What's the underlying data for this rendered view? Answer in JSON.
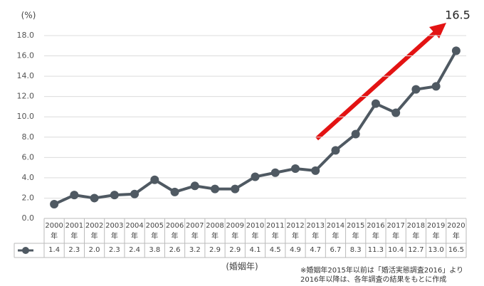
{
  "chart_data": {
    "type": "line",
    "y_unit": "(%)",
    "x_label": "(婚姻年)",
    "annotation": "16.5",
    "notes": [
      "※婚姻年2015年以前は「婚活実態調査2016」より",
      "2016年以降は、各年調査の結果をもとに作成"
    ],
    "categories": [
      "2000年",
      "2001年",
      "2002年",
      "2003年",
      "2004年",
      "2005年",
      "2006年",
      "2007年",
      "2008年",
      "2009年",
      "2010年",
      "2011年",
      "2012年",
      "2013年",
      "2014年",
      "2015年",
      "2016年",
      "2017年",
      "2018年",
      "2019年",
      "2020年"
    ],
    "series": [
      {
        "color": "#4f5962",
        "values": [
          1.4,
          2.3,
          2.0,
          2.3,
          2.4,
          3.8,
          2.6,
          3.2,
          2.9,
          2.9,
          4.1,
          4.5,
          4.9,
          4.7,
          6.7,
          8.3,
          11.3,
          10.4,
          12.7,
          13.0,
          16.5
        ],
        "value_labels": [
          "1.4",
          "2.3",
          "2.0",
          "2.3",
          "2.4",
          "3.8",
          "2.6",
          "3.2",
          "2.9",
          "2.9",
          "4.1",
          "4.5",
          "4.9",
          "4.7",
          "6.7",
          "8.3",
          "11.3",
          "10.4",
          "12.7",
          "13.0",
          "16.5"
        ]
      }
    ],
    "ylim": [
      0,
      18
    ],
    "yticks": [
      {
        "value": 0,
        "label": "0.0"
      },
      {
        "value": 2,
        "label": "2.0"
      },
      {
        "value": 4,
        "label": "4.0"
      },
      {
        "value": 6,
        "label": "6.0"
      },
      {
        "value": 8,
        "label": "8.0"
      },
      {
        "value": 10,
        "label": "10.0"
      },
      {
        "value": 12,
        "label": "12.0"
      },
      {
        "value": 14,
        "label": "14.0"
      },
      {
        "value": 16,
        "label": "16.0"
      },
      {
        "value": 18,
        "label": "18.0"
      }
    ],
    "grid": true
  }
}
